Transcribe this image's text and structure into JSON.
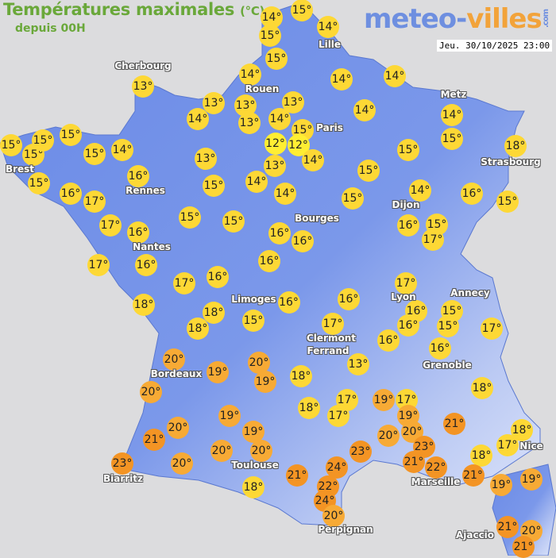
{
  "header": {
    "title": "Températures maximales",
    "unit": "(°C)",
    "subtitle": "depuis 00H",
    "datetime": "Jeu. 30/10/2025 23:00"
  },
  "logo": {
    "part1": "meteo-",
    "part2": "villes",
    "suffix": ".com"
  },
  "colors": {
    "land": "#7090e8",
    "sea": "#dcdcde",
    "t12": "#ffee33",
    "cool": "#fdd835",
    "warm": "#f7aa35",
    "hot": "#f39424",
    "title": "#6aa83a"
  },
  "cities": [
    "Cherbourg",
    "Rouen",
    "Lille",
    "Paris",
    "Metz",
    "Strasbourg",
    "Brest",
    "Rennes",
    "Nantes",
    "Bourges",
    "Dijon",
    "Limoges",
    "Lyon",
    "Annecy",
    "Clermont",
    "Ferrand",
    "Grenoble",
    "Bordeaux",
    "Toulouse",
    "Biarritz",
    "Marseille",
    "Nice",
    "Perpignan",
    "Ajaccio"
  ],
  "temperatures": [
    14,
    15,
    15,
    14,
    15,
    13,
    14,
    14,
    14,
    13,
    13,
    13,
    14,
    13,
    14,
    15,
    14,
    14,
    15,
    18,
    15,
    15,
    15,
    15,
    15,
    14,
    12,
    12,
    14,
    13,
    13,
    15,
    15,
    16,
    15,
    16,
    17,
    15,
    14,
    14,
    15,
    14,
    16,
    15,
    17,
    15,
    15,
    16,
    16,
    16,
    16,
    15,
    17,
    17,
    16,
    16,
    17,
    16,
    17,
    16,
    16,
    15,
    15,
    17,
    18,
    16,
    16,
    18,
    18,
    15,
    17,
    16,
    16,
    13,
    20,
    19,
    20,
    19,
    18,
    18,
    20,
    17,
    17,
    18,
    19,
    17,
    19,
    19,
    21,
    20,
    19,
    21,
    20,
    20,
    23,
    21,
    22,
    17,
    18,
    18,
    23,
    20,
    20,
    23,
    20,
    24,
    21,
    21,
    19,
    19,
    22,
    18,
    24,
    20,
    21,
    20,
    21
  ]
}
